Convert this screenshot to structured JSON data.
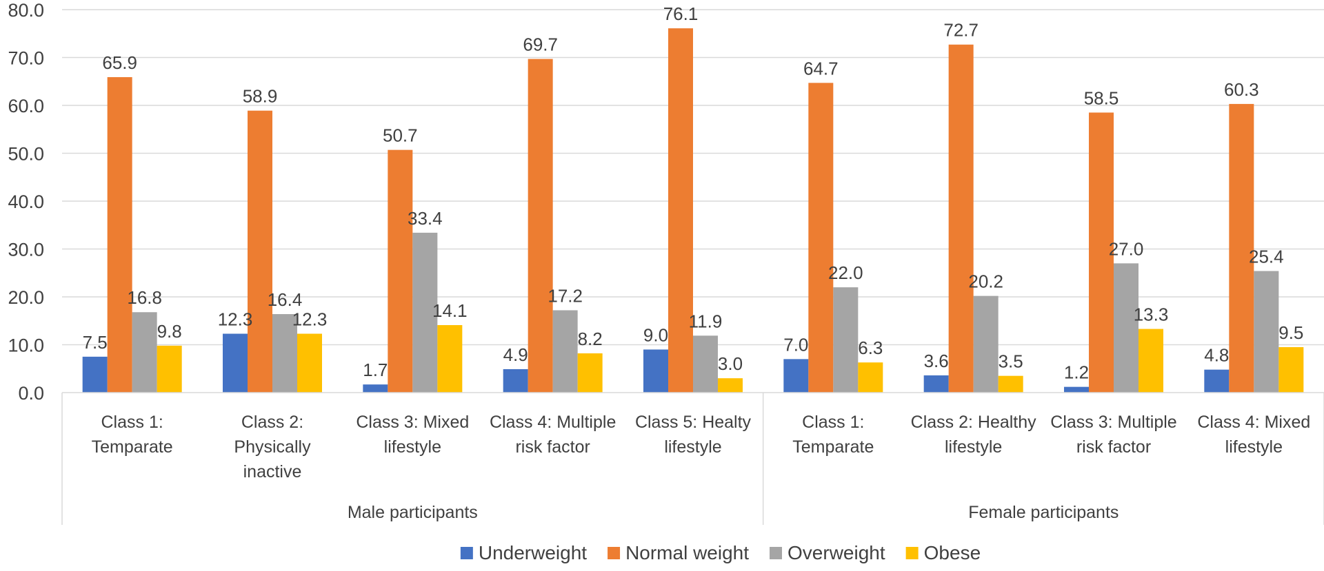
{
  "chart_data": {
    "type": "bar",
    "title": "",
    "xlabel": "",
    "ylabel": "",
    "ylim": [
      0,
      80
    ],
    "yticks": [
      "0.0",
      "10.0",
      "20.0",
      "30.0",
      "40.0",
      "50.0",
      "60.0",
      "70.0",
      "80.0"
    ],
    "grid": true,
    "legend_position": "bottom",
    "groups": [
      {
        "label": "Male participants",
        "categories": [
          [
            "Class 1:",
            "Temparate"
          ],
          [
            "Class 2:",
            "Physically",
            "inactive"
          ],
          [
            "Class 3: Mixed",
            "lifestyle"
          ],
          [
            "Class 4: Multiple",
            "risk factor"
          ],
          [
            "Class 5: Healty",
            "lifestyle"
          ]
        ]
      },
      {
        "label": "Female participants",
        "categories": [
          [
            "Class 1:",
            "Temparate"
          ],
          [
            "Class 2: Healthy",
            "lifestyle"
          ],
          [
            "Class 3: Multiple",
            "risk factor"
          ],
          [
            "Class 4: Mixed",
            "lifestyle"
          ]
        ]
      }
    ],
    "series": [
      {
        "name": "Underweight",
        "color": "#4472C4",
        "values": [
          7.5,
          12.3,
          1.7,
          4.9,
          9.0,
          7.0,
          3.6,
          1.2,
          4.8
        ],
        "labels": [
          "7.5",
          "12.3",
          "1.7",
          "4.9",
          "9.0",
          "7.0",
          "3.6",
          "1.2",
          "4.8"
        ]
      },
      {
        "name": "Normal weight",
        "color": "#ED7D31",
        "values": [
          65.9,
          58.9,
          50.7,
          69.7,
          76.1,
          64.7,
          72.7,
          58.5,
          60.3
        ],
        "labels": [
          "65.9",
          "58.9",
          "50.7",
          "69.7",
          "76.1",
          "64.7",
          "72.7",
          "58.5",
          "60.3"
        ]
      },
      {
        "name": "Overweight",
        "color": "#A5A5A5",
        "values": [
          16.8,
          16.4,
          33.4,
          17.2,
          11.9,
          22.0,
          20.2,
          27.0,
          25.4
        ],
        "labels": [
          "16.8",
          "16.4",
          "33.4",
          "17.2",
          "11.9",
          "22.0",
          "20.2",
          "27.0",
          "25.4"
        ]
      },
      {
        "name": "Obese",
        "color": "#FFC000",
        "values": [
          9.8,
          12.3,
          14.1,
          8.2,
          3.0,
          6.3,
          3.5,
          13.3,
          9.5
        ],
        "labels": [
          "9.8",
          "12.3",
          "14.1",
          "8.2",
          "3.0",
          "6.3",
          "3.5",
          "13.3",
          "9.5"
        ]
      }
    ]
  }
}
